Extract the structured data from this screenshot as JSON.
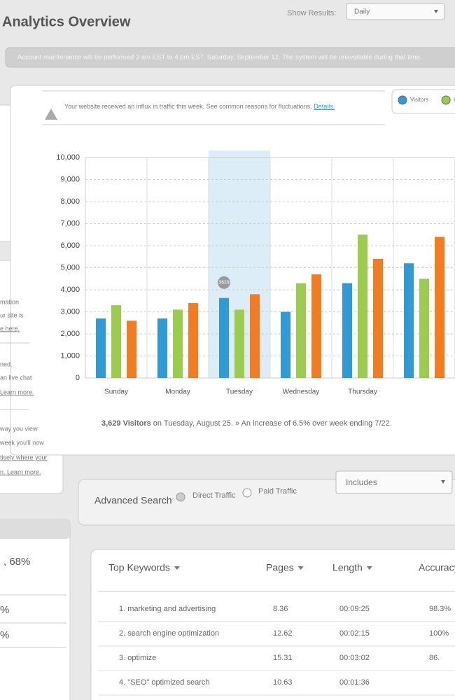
{
  "header": {
    "title": "Analytics Overview",
    "show_results_label": "Show Results:",
    "show_results_value": "Daily"
  },
  "banner": "Account maintenance will be performed 3 am EST to 4 pm EST, Saturday, September 12. The system will be unavailable during that time.",
  "alert": {
    "text": "Your website received an influx in traffic this week. See common reasons for fluctuations.",
    "link": "Details."
  },
  "chart_data": {
    "type": "bar",
    "categories": [
      "Sunday",
      "Monday",
      "Tuesday",
      "Wednesday",
      "Thursday",
      null
    ],
    "series": [
      {
        "name": "Visitors",
        "color": "#2e9ad6",
        "values": [
          2700,
          2700,
          3629,
          3000,
          4300,
          5200
        ]
      },
      {
        "name": "Uni",
        "color": "#9ccc4e",
        "values": [
          3300,
          3100,
          3100,
          4300,
          6500,
          4500
        ]
      },
      {
        "color": "#f47c20",
        "values": [
          2600,
          3400,
          3800,
          4700,
          5400,
          6400
        ]
      }
    ],
    "ylim": [
      0,
      10000
    ],
    "yticks": [
      0,
      {
        "value": 1000,
        "label": "1,000"
      },
      {
        "value": 2000,
        "label": "2,000"
      },
      {
        "value": 3000,
        "label": "3,000"
      },
      {
        "value": 4000,
        "label": "4,000"
      },
      {
        "value": 5000,
        "label": "5,000"
      },
      {
        "value": 6000,
        "label": "6,000"
      },
      {
        "value": 7000,
        "label": "7,000"
      },
      {
        "value": 8000,
        "label": "8,000"
      },
      {
        "value": 9000,
        "label": "9,000"
      },
      {
        "value": 10000,
        "label": "10,000"
      }
    ],
    "grid": true,
    "highlight": "Tuesday",
    "caption_bold": "3,629 Visitors",
    "caption": "on Tuesday, August 25. » An increase of 6.5% over week ending 7/22."
  },
  "search": {
    "title": "Advanced Search",
    "options": [
      "Direct Traffic",
      "Paid Traffic"
    ],
    "dropdown": "Includes"
  },
  "table": {
    "headers": [
      "Top Keywords",
      "Pages",
      "Length",
      "Accuracy"
    ],
    "rows": [
      [
        "1. marketing and advertising",
        "8.36",
        "00:09:25",
        "98.3%"
      ],
      [
        "2. search engine optimization",
        "12.62",
        "00:02:15",
        "100%"
      ],
      [
        "3. optimize",
        "15.31",
        "00:03:02",
        "86."
      ],
      [
        "4. \"SEO\" optimized search",
        "10.63",
        "00:01:36"
      ]
    ]
  },
  "side_panel": {
    "fragments": [
      "mation",
      "ur site is",
      "e here.",
      "ned.",
      "an live chat",
      "Learn more.",
      "way you view",
      "week you'll now",
      "tisely where your",
      "n. Learn more.",
      ", 68%",
      "%",
      "%"
    ]
  }
}
